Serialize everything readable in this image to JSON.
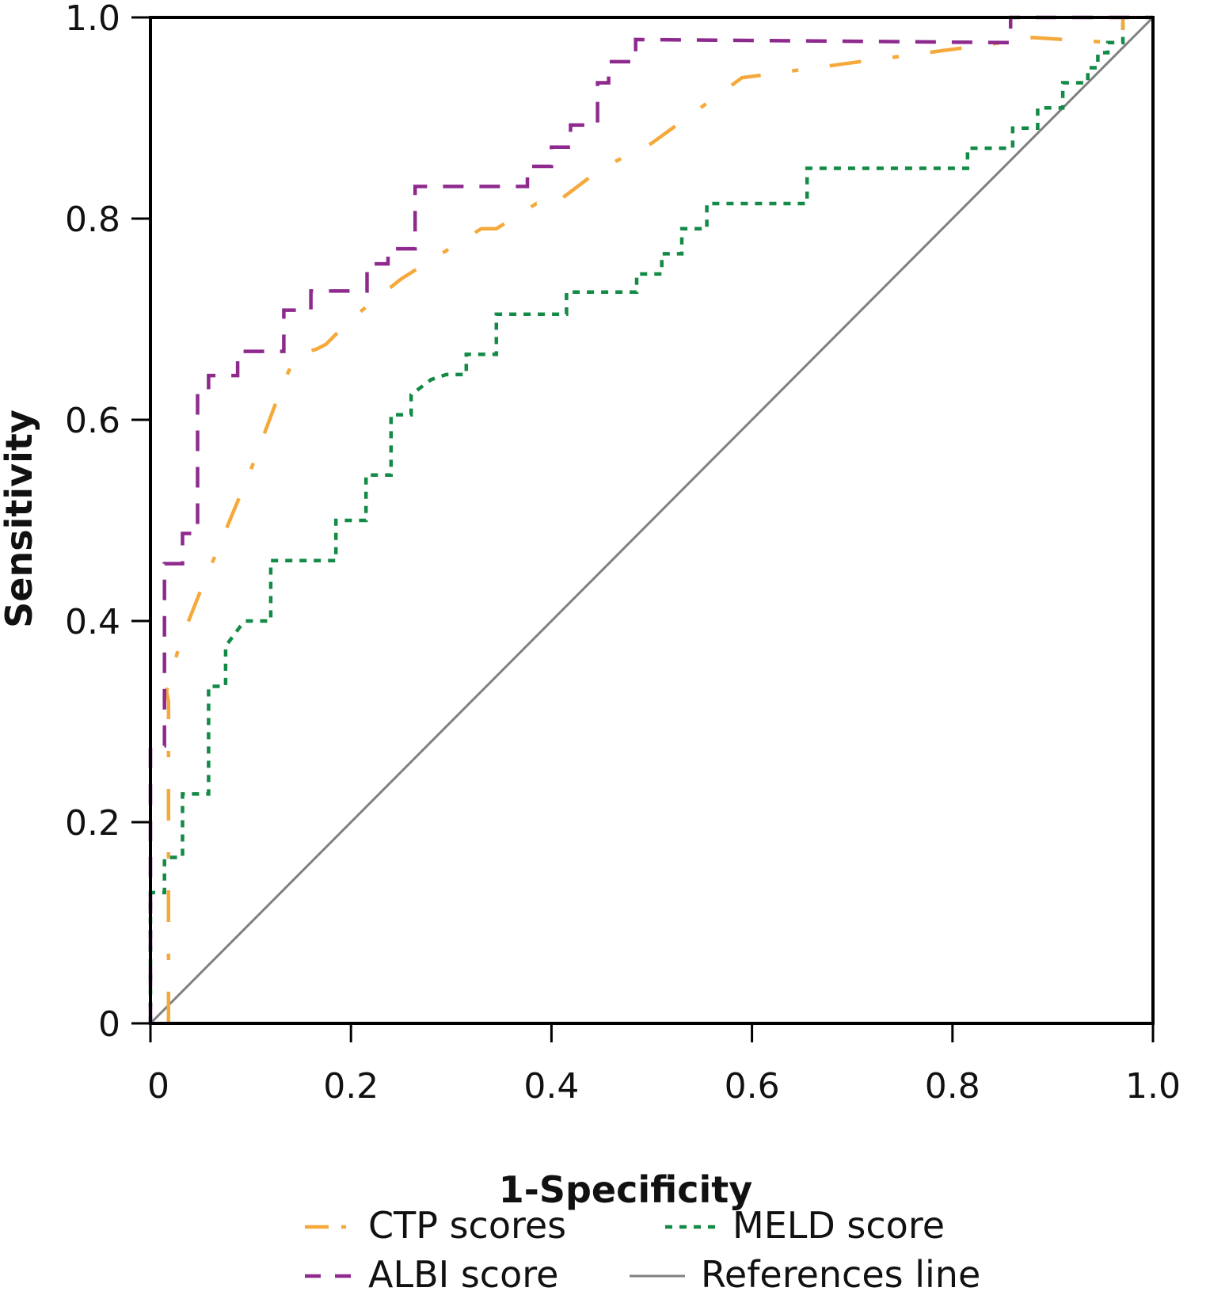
{
  "chart_data": {
    "type": "line",
    "title": "",
    "xlabel": "1-Specificity",
    "ylabel": "Sensitivity",
    "xlim": [
      0,
      1
    ],
    "ylim": [
      0,
      1
    ],
    "grid": false,
    "x_ticks": [
      "0",
      "0.2",
      "0.4",
      "0.6",
      "0.8",
      "1.0"
    ],
    "x_tick_values": [
      0,
      0.2,
      0.4,
      0.6,
      0.8,
      1.0
    ],
    "y_ticks": [
      "0",
      "0.2",
      "0.4",
      "0.6",
      "0.8",
      "1.0"
    ],
    "y_tick_values": [
      0,
      0.2,
      0.4,
      0.6,
      0.8,
      1.0
    ],
    "legend_position": "bottom",
    "series": [
      {
        "name": "CTP scores",
        "color": "#f5a93b",
        "style": "dash-dot",
        "x": [
          0.018,
          0.018,
          0.016,
          0.03,
          0.05,
          0.075,
          0.1,
          0.13,
          0.145,
          0.165,
          0.175,
          0.2,
          0.25,
          0.33,
          0.345,
          0.385,
          0.397,
          0.45,
          0.5,
          0.59,
          0.7,
          0.85,
          0.88,
          0.96,
          0.97,
          0.97
        ],
        "y": [
          0,
          0.32,
          0.33,
          0.38,
          0.43,
          0.49,
          0.55,
          0.63,
          0.665,
          0.67,
          0.675,
          0.7,
          0.74,
          0.79,
          0.79,
          0.815,
          0.81,
          0.85,
          0.875,
          0.94,
          0.955,
          0.975,
          0.98,
          0.975,
          0.98,
          1.0
        ]
      },
      {
        "name": "MELD score",
        "color": "#138a45",
        "style": "dotted",
        "x": [
          0,
          0,
          0.014,
          0.014,
          0.032,
          0.032,
          0.058,
          0.058,
          0.075,
          0.075,
          0.09,
          0.095,
          0.12,
          0.12,
          0.185,
          0.185,
          0.215,
          0.215,
          0.24,
          0.24,
          0.26,
          0.26,
          0.28,
          0.295,
          0.315,
          0.315,
          0.345,
          0.345,
          0.415,
          0.415,
          0.485,
          0.485,
          0.51,
          0.51,
          0.53,
          0.53,
          0.555,
          0.555,
          0.655,
          0.655,
          0.815,
          0.815,
          0.86,
          0.86,
          0.885,
          0.885,
          0.91,
          0.91,
          0.935,
          0.935,
          0.945,
          0.945,
          0.955,
          0.955,
          0.97,
          0.97
        ],
        "y": [
          0,
          0.13,
          0.13,
          0.165,
          0.165,
          0.228,
          0.228,
          0.335,
          0.335,
          0.375,
          0.395,
          0.4,
          0.4,
          0.46,
          0.46,
          0.5,
          0.5,
          0.545,
          0.545,
          0.605,
          0.605,
          0.625,
          0.64,
          0.645,
          0.645,
          0.665,
          0.665,
          0.705,
          0.705,
          0.727,
          0.727,
          0.745,
          0.745,
          0.765,
          0.765,
          0.79,
          0.79,
          0.815,
          0.815,
          0.85,
          0.85,
          0.87,
          0.87,
          0.89,
          0.89,
          0.91,
          0.91,
          0.935,
          0.935,
          0.95,
          0.95,
          0.965,
          0.965,
          0.975,
          0.975,
          1.0
        ]
      },
      {
        "name": "ALBI score",
        "color": "#8e2a8e",
        "style": "dashed",
        "x": [
          0,
          0,
          0.014,
          0.014,
          0.032,
          0.032,
          0.047,
          0.047,
          0.058,
          0.058,
          0.087,
          0.087,
          0.133,
          0.133,
          0.16,
          0.16,
          0.216,
          0.216,
          0.237,
          0.237,
          0.264,
          0.264,
          0.376,
          0.376,
          0.4,
          0.4,
          0.419,
          0.419,
          0.446,
          0.446,
          0.457,
          0.457,
          0.484,
          0.484,
          0.858,
          0.858,
          1.0
        ],
        "y": [
          0,
          0.276,
          0.276,
          0.457,
          0.457,
          0.487,
          0.487,
          0.628,
          0.628,
          0.644,
          0.644,
          0.668,
          0.668,
          0.709,
          0.709,
          0.728,
          0.728,
          0.755,
          0.755,
          0.77,
          0.77,
          0.832,
          0.832,
          0.852,
          0.852,
          0.871,
          0.871,
          0.893,
          0.893,
          0.935,
          0.935,
          0.956,
          0.956,
          0.978,
          0.975,
          1.0,
          1.0
        ]
      },
      {
        "name": "References line",
        "color": "#808080",
        "style": "solid",
        "x": [
          0,
          1
        ],
        "y": [
          0,
          1
        ]
      }
    ],
    "legend": [
      {
        "label": "CTP scores",
        "series": 0
      },
      {
        "label": "MELD score",
        "series": 1
      },
      {
        "label": "ALBI score",
        "series": 2
      },
      {
        "label": "References line",
        "series": 3
      }
    ]
  }
}
